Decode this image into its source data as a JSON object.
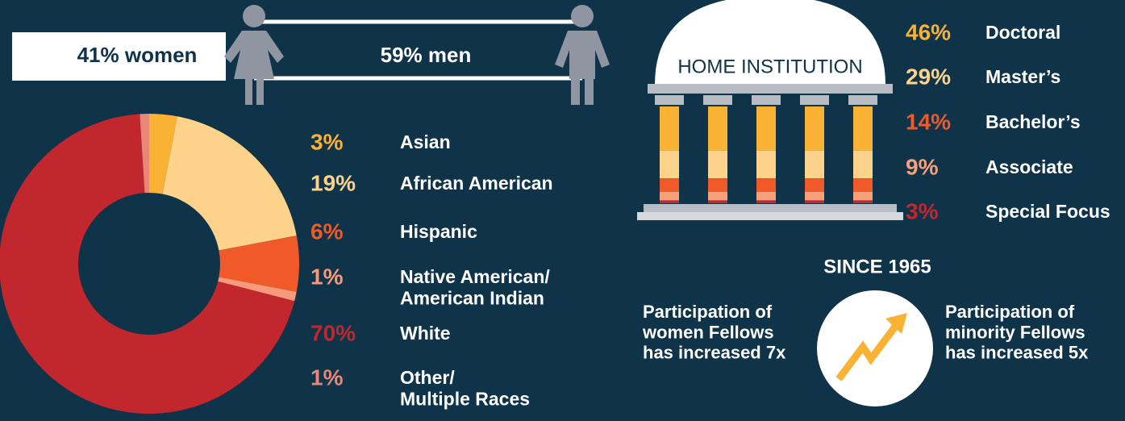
{
  "gender": {
    "women": "41% women",
    "men": "59% men"
  },
  "chart_data": [
    {
      "type": "donut",
      "categories": [
        "Asian",
        "African American",
        "Hispanic",
        "Native American/\nAmerican Indian",
        "White",
        "Other/\nMultiple Races"
      ],
      "values": [
        3,
        19,
        6,
        1,
        70,
        1
      ],
      "value_labels": [
        "3%",
        "19%",
        "6%",
        "1%",
        "70%",
        "1%"
      ],
      "colors": [
        "#f9b233",
        "#fdd28a",
        "#f05a28",
        "#f79a7b",
        "#c1272d",
        "#e8867a"
      ]
    },
    {
      "type": "pillars",
      "label": "HOME INSTITUTION",
      "categories": [
        "Doctoral",
        "Master’s",
        "Bachelor’s",
        "Associate",
        "Special Focus"
      ],
      "values": [
        46,
        29,
        14,
        9,
        3
      ],
      "value_labels": [
        "46%",
        "29%",
        "14%",
        "9%",
        "3%"
      ],
      "colors": [
        "#f9b233",
        "#fdd28a",
        "#f05a28",
        "#f7a07c",
        "#c1272d"
      ]
    }
  ],
  "since": {
    "title": "SINCE 1965",
    "left": "Participation of\nwomen Fellows\nhas increased 7x",
    "right": "Participation of\nminority Fellows\nhas increased 5x"
  }
}
